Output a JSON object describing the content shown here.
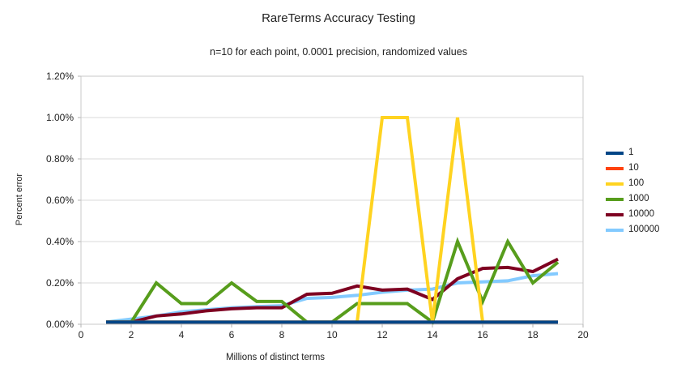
{
  "chart_data": {
    "type": "line",
    "title": "RareTerms Accuracy Testing",
    "subtitle": "n=10 for each point, 0.0001 precision, randomized values",
    "xlabel": "Millions of distinct terms",
    "ylabel": "Percent error",
    "xlim": [
      0,
      20
    ],
    "ylim_percent": [
      0,
      1.2
    ],
    "grid": "horizontal",
    "legend_position": "right",
    "x_ticks": [
      0,
      2,
      4,
      6,
      8,
      10,
      12,
      14,
      16,
      18,
      20
    ],
    "y_ticks": {
      "values": [
        0,
        0.2,
        0.4,
        0.6,
        0.8,
        1.0,
        1.2
      ],
      "labels": [
        "0.00%",
        "0.20%",
        "0.40%",
        "0.60%",
        "0.80%",
        "1.00%",
        "1.20%"
      ]
    },
    "x": [
      1,
      2,
      3,
      4,
      5,
      6,
      7,
      8,
      9,
      10,
      11,
      12,
      13,
      14,
      15,
      16,
      17,
      18,
      19
    ],
    "series": [
      {
        "name": "1",
        "color": "#004586",
        "values": [
          0.01,
          0.01,
          0.01,
          0.01,
          0.01,
          0.01,
          0.01,
          0.01,
          0.01,
          0.01,
          0.01,
          0.01,
          0.01,
          0.01,
          0.01,
          0.01,
          0.01,
          0.01,
          0.01
        ]
      },
      {
        "name": "10",
        "color": "#FF420E",
        "values": [
          0.01,
          0.01,
          0.01,
          0.01,
          0.01,
          0.01,
          0.01,
          0.01,
          0.01,
          0.01,
          0.01,
          0.01,
          0.01,
          0.01,
          0.01,
          0.01,
          0.01,
          0.01,
          0.01
        ]
      },
      {
        "name": "100",
        "color": "#FFD320",
        "values": [
          0.01,
          0.01,
          0.01,
          0.01,
          0.01,
          0.01,
          0.01,
          0.01,
          0.01,
          0.01,
          0.01,
          1.0,
          1.0,
          0.01,
          1.0,
          0.01,
          0.01,
          0.01,
          0.01
        ]
      },
      {
        "name": "1000",
        "color": "#579D1C",
        "values": [
          0.01,
          0.01,
          0.2,
          0.1,
          0.1,
          0.2,
          0.11,
          0.11,
          0.01,
          0.01,
          0.1,
          0.1,
          0.1,
          0.01,
          0.4,
          0.11,
          0.4,
          0.2,
          0.3
        ]
      },
      {
        "name": "10000",
        "color": "#7E0021",
        "values": [
          0.01,
          0.01,
          0.04,
          0.05,
          0.065,
          0.075,
          0.08,
          0.08,
          0.145,
          0.15,
          0.185,
          0.165,
          0.17,
          0.12,
          0.22,
          0.27,
          0.275,
          0.255,
          0.315
        ]
      },
      {
        "name": "100000",
        "color": "#83CAFF",
        "values": [
          0.01,
          0.025,
          0.04,
          0.06,
          0.07,
          0.08,
          0.085,
          0.09,
          0.125,
          0.13,
          0.14,
          0.155,
          0.165,
          0.17,
          0.2,
          0.205,
          0.21,
          0.235,
          0.245
        ]
      }
    ],
    "colors": {
      "grid": "#d9d9d9",
      "axis": "#b3b3b3",
      "border": "#c8c8c8",
      "text": "#222222"
    }
  }
}
